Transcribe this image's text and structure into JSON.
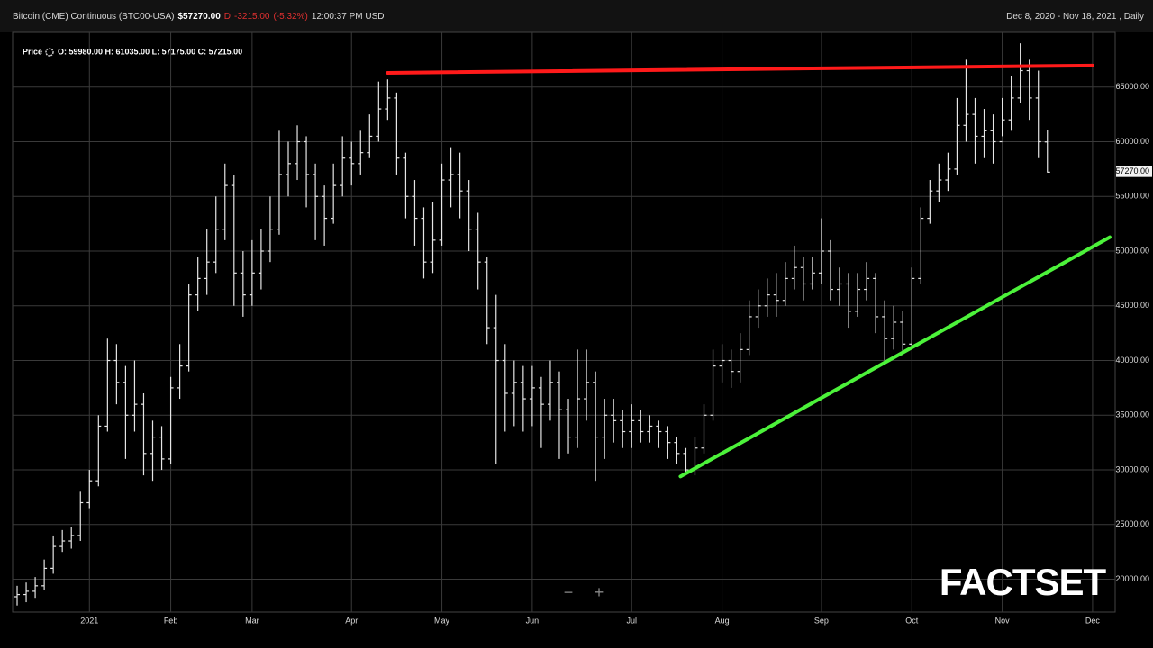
{
  "chart_data": {
    "type": "ohlc",
    "title": "Bitcoin (CME) Continuous (BTC00-USA)",
    "price_text": "$57270.00",
    "change_flag": "D",
    "change": "-3215.00",
    "change_pct": "(-5.32%)",
    "time_text": "12:00:37 PM USD",
    "range_text": "Dec 8, 2020 - Nov 18, 2021 , Daily",
    "legend_label": "Price",
    "legend_values": "O: 59980.00 H: 61035.00 L: 57175.00 C: 57215.00",
    "last_price": {
      "value": 57270,
      "label": "57270.00"
    },
    "logo": "FACTSET",
    "zoom_out": "−",
    "zoom_in": "+",
    "color": "#e6e6e6",
    "grid": true,
    "categories": [
      null,
      null,
      null,
      null,
      null,
      null,
      null,
      null,
      "2021",
      null,
      null,
      null,
      null,
      null,
      null,
      null,
      null,
      "Feb",
      null,
      null,
      null,
      null,
      null,
      null,
      null,
      null,
      "Mar",
      null,
      null,
      null,
      null,
      null,
      null,
      null,
      null,
      null,
      null,
      "Apr",
      null,
      null,
      null,
      null,
      null,
      null,
      null,
      null,
      null,
      "May",
      null,
      null,
      null,
      null,
      null,
      null,
      null,
      null,
      null,
      "Jun",
      null,
      null,
      null,
      null,
      null,
      null,
      null,
      null,
      null,
      null,
      "Jul",
      null,
      null,
      null,
      null,
      null,
      null,
      null,
      null,
      null,
      "Aug",
      null,
      null,
      null,
      null,
      null,
      null,
      null,
      null,
      null,
      null,
      "Sep",
      null,
      null,
      null,
      null,
      null,
      null,
      null,
      null,
      null,
      "Oct",
      null,
      null,
      null,
      null,
      null,
      null,
      null,
      null,
      null,
      "Nov",
      null,
      null,
      null,
      null,
      null,
      null,
      null,
      null,
      null,
      "Dec",
      null,
      null
    ],
    "open": [
      18400,
      18600,
      18900,
      19400,
      21000,
      23000,
      23500,
      24000,
      27000,
      29000,
      34000,
      40000,
      38000,
      35000,
      36000,
      31500,
      33000,
      31000,
      37500,
      39500,
      46000,
      47500,
      49000,
      52000,
      56000,
      48000,
      46000,
      48000,
      50000,
      52000,
      57000,
      58000,
      60000,
      57000,
      55000,
      53000,
      56000,
      58500,
      58000,
      59000,
      60500,
      63000,
      64000,
      58500,
      55000,
      53000,
      49000,
      51000,
      56500,
      57000,
      55500,
      52000,
      49000,
      43000,
      40000,
      37000,
      38000,
      36500,
      37500,
      36000,
      38000,
      35500,
      33000,
      36500,
      38000,
      33000,
      35000,
      34500,
      33500,
      34500,
      33500,
      34000,
      33500,
      32500,
      31500,
      30000,
      32000,
      35000,
      39500,
      40000,
      39000,
      41000,
      44000,
      45000,
      46000,
      45500,
      47500,
      48500,
      47000,
      48000,
      50000,
      46500,
      47000,
      44500,
      46500,
      47500,
      44000,
      42000,
      43500,
      41500,
      47500,
      53000,
      55500,
      56500,
      57500,
      61500,
      62500,
      60500,
      61000,
      60000,
      62000,
      64000,
      66500,
      64000,
      59980,
      null,
      null,
      null,
      null,
      null,
      null,
      null
    ],
    "high": [
      19400,
      19700,
      20200,
      21800,
      24000,
      24500,
      24800,
      28000,
      30000,
      35000,
      42000,
      41500,
      39500,
      40000,
      37000,
      34500,
      34000,
      38500,
      41500,
      47000,
      49500,
      52000,
      55000,
      58000,
      57000,
      50000,
      51000,
      52000,
      55000,
      61000,
      60000,
      61500,
      60500,
      58000,
      56000,
      58000,
      60500,
      60000,
      61000,
      62500,
      65500,
      65700,
      64500,
      59000,
      56500,
      54000,
      54500,
      58000,
      59500,
      59000,
      56500,
      53500,
      49500,
      46000,
      41500,
      40000,
      39500,
      39500,
      38500,
      40000,
      39000,
      36500,
      41000,
      41000,
      39000,
      36500,
      36500,
      35500,
      36000,
      35500,
      35000,
      34500,
      34000,
      33000,
      32000,
      33000,
      36000,
      41000,
      41500,
      41000,
      42500,
      45500,
      46500,
      47500,
      48000,
      49000,
      50500,
      49500,
      49500,
      53000,
      51000,
      48500,
      48000,
      48000,
      49000,
      48000,
      45500,
      45000,
      44500,
      48500,
      54000,
      56500,
      58000,
      59000,
      64000,
      67500,
      64000,
      63000,
      62500,
      64000,
      66000,
      69000,
      67500,
      66500,
      61035,
      null,
      null,
      null,
      null,
      null,
      null,
      null
    ],
    "low": [
      17600,
      17900,
      18300,
      19000,
      20500,
      22500,
      22800,
      23500,
      26500,
      28500,
      33500,
      36000,
      31000,
      33500,
      29500,
      29000,
      30000,
      30500,
      36500,
      39000,
      44500,
      46000,
      48000,
      51000,
      45000,
      44000,
      45000,
      46500,
      49000,
      51500,
      55000,
      56500,
      54000,
      51000,
      50500,
      52500,
      55000,
      56000,
      57000,
      58500,
      60000,
      62000,
      57000,
      53000,
      50500,
      47500,
      48000,
      50500,
      54000,
      53000,
      50000,
      46500,
      41500,
      30500,
      33500,
      34000,
      33500,
      34000,
      32000,
      34500,
      31000,
      31500,
      32000,
      34500,
      29000,
      31000,
      32500,
      32000,
      32000,
      32500,
      32500,
      32000,
      31000,
      30500,
      29500,
      29500,
      31500,
      34500,
      38000,
      37500,
      38000,
      40500,
      43000,
      44000,
      44000,
      45000,
      46500,
      45500,
      46500,
      47000,
      45500,
      45000,
      43000,
      44000,
      45500,
      42500,
      40000,
      41000,
      40500,
      41000,
      47000,
      52500,
      54500,
      55500,
      57000,
      60000,
      58000,
      58500,
      58000,
      60500,
      61000,
      63500,
      62000,
      58500,
      57175,
      null,
      null,
      null,
      null,
      null,
      null,
      null
    ],
    "close": [
      18600,
      18900,
      19400,
      21000,
      23000,
      23500,
      24000,
      27000,
      29000,
      34000,
      40000,
      38000,
      35000,
      36000,
      31500,
      33000,
      31000,
      37500,
      39500,
      46000,
      47500,
      49000,
      52000,
      56000,
      48000,
      46000,
      48000,
      50000,
      52000,
      57000,
      58000,
      60000,
      57000,
      55000,
      53000,
      56000,
      58500,
      58000,
      59000,
      60500,
      63000,
      64000,
      58500,
      55000,
      53000,
      49000,
      51000,
      56500,
      57000,
      55500,
      52000,
      49000,
      43000,
      40000,
      37000,
      38000,
      36500,
      37500,
      36000,
      38000,
      35500,
      33000,
      36500,
      38000,
      33000,
      35000,
      34500,
      33500,
      34500,
      33500,
      34000,
      33500,
      32500,
      31500,
      30000,
      32000,
      35000,
      39500,
      40000,
      39000,
      41000,
      44000,
      45000,
      46000,
      45500,
      47500,
      48500,
      47000,
      48000,
      50000,
      46500,
      47000,
      44500,
      46500,
      47500,
      44000,
      42000,
      43500,
      41500,
      47500,
      53000,
      55500,
      56500,
      57500,
      61500,
      62500,
      60500,
      61000,
      60000,
      62000,
      64000,
      66500,
      64000,
      60000,
      57215,
      null,
      null,
      null,
      null,
      null,
      null,
      null
    ],
    "trendlines": [
      {
        "color": "#ff1a1a",
        "x": [
          41,
          119
        ],
        "values": [
          66300,
          66970
        ]
      },
      {
        "color": "#4cf23a",
        "x": [
          73.4,
          120.9
        ],
        "values": [
          29400,
          51270
        ]
      }
    ],
    "ylim": [
      17000,
      70000
    ],
    "yticks": [
      {
        "value": 20000,
        "label": "20000.00"
      },
      {
        "value": 25000,
        "label": "25000.00"
      },
      {
        "value": 30000,
        "label": "30000.00"
      },
      {
        "value": 35000,
        "label": "35000.00"
      },
      {
        "value": 40000,
        "label": "40000.00"
      },
      {
        "value": 45000,
        "label": "45000.00"
      },
      {
        "value": 50000,
        "label": "50000.00"
      },
      {
        "value": 55000,
        "label": "55000.00"
      },
      {
        "value": 60000,
        "label": "60000.00"
      },
      {
        "value": 65000,
        "label": "65000.00"
      }
    ]
  }
}
